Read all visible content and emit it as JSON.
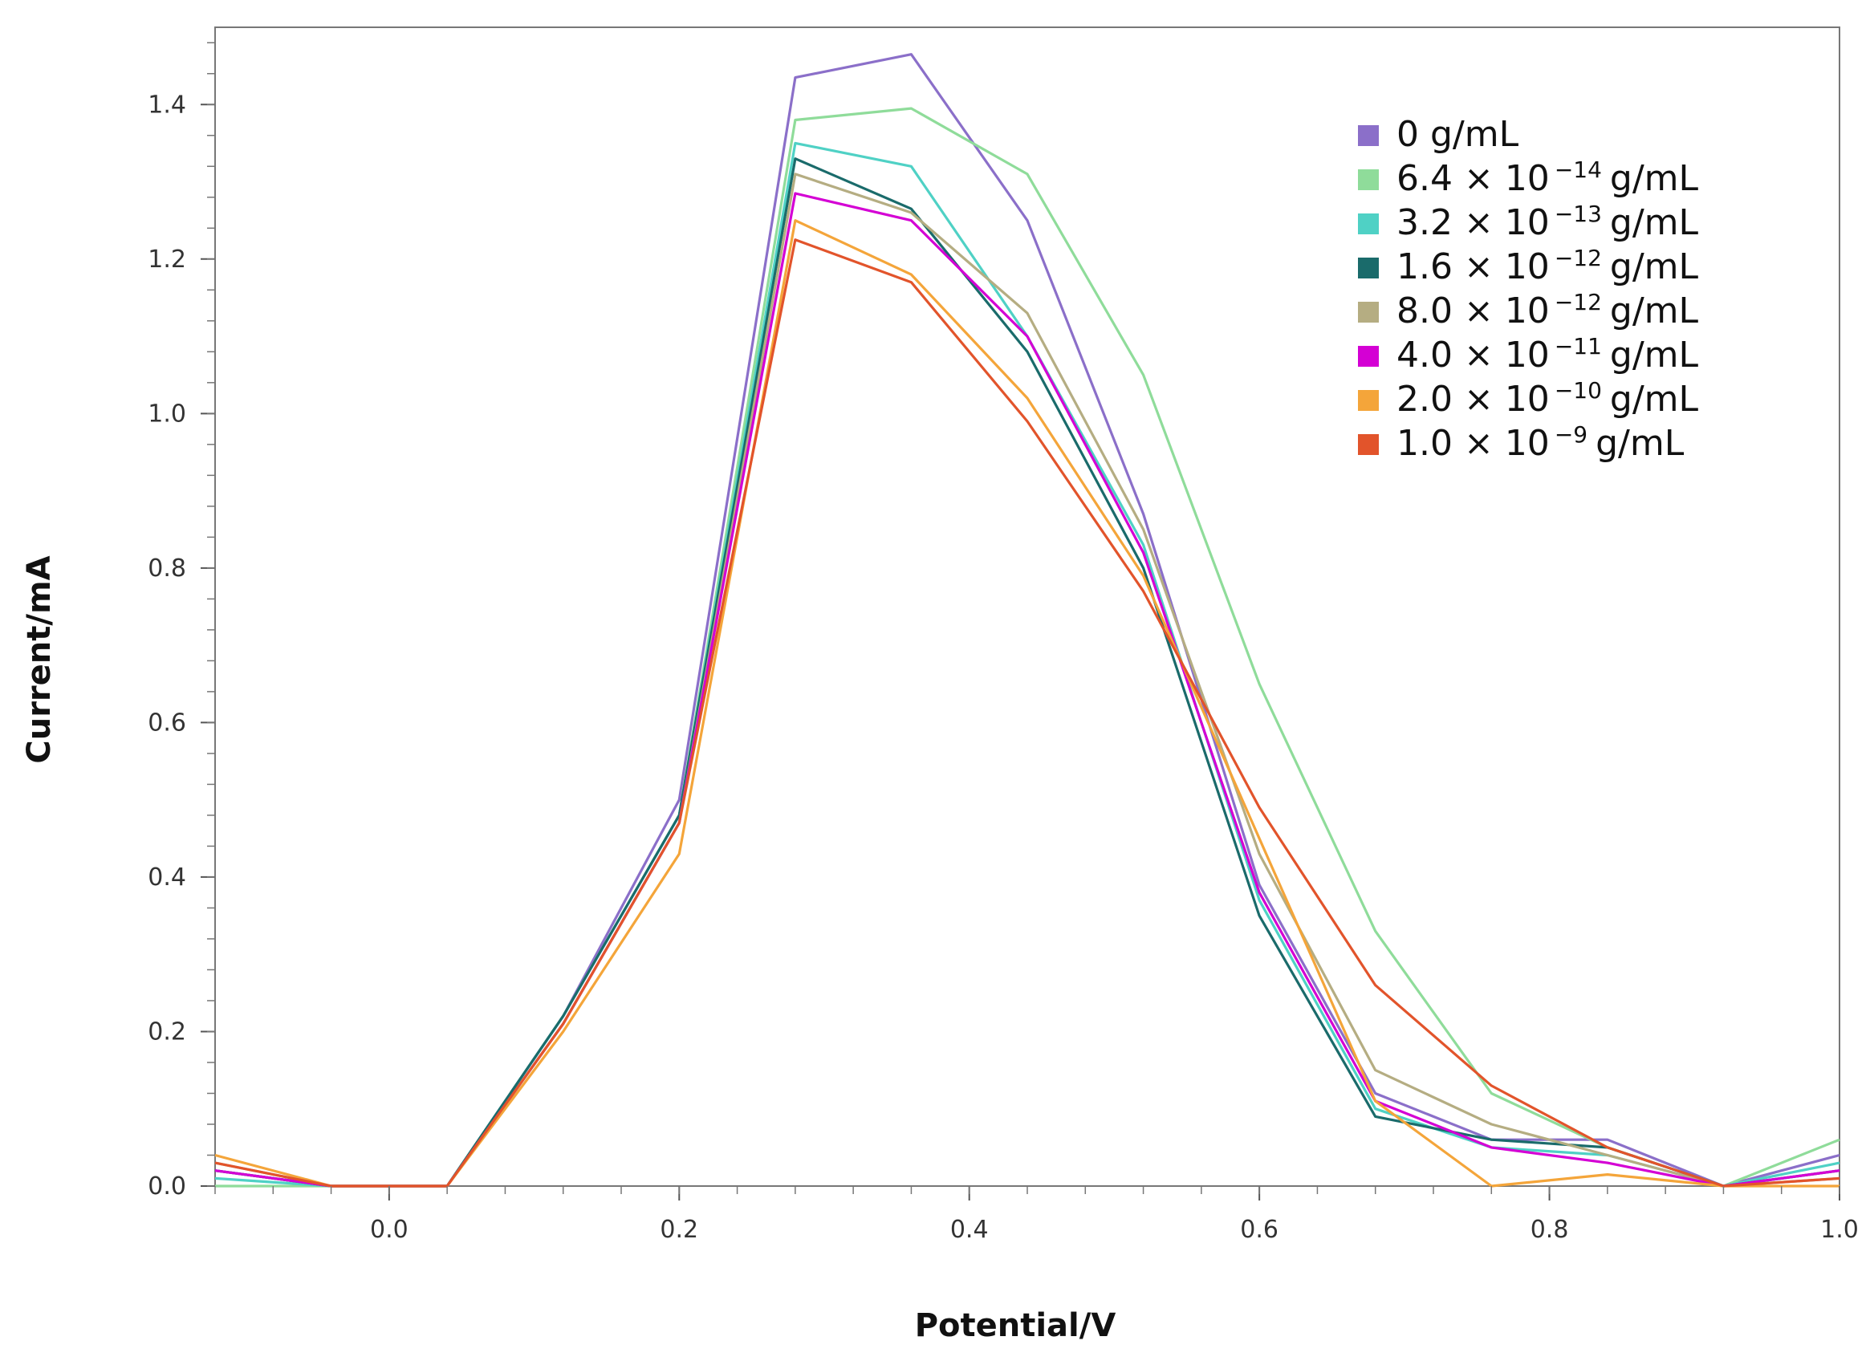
{
  "chart_data": {
    "type": "line",
    "title": "",
    "xlabel": "Potential/V",
    "ylabel": "Current/mA",
    "xlim": [
      -0.12,
      1.0
    ],
    "ylim": [
      0.0,
      1.5
    ],
    "x_ticks": [
      0.0,
      0.2,
      0.4,
      0.6,
      0.8,
      1.0
    ],
    "x_tick_labels": [
      "0.0",
      "0.2",
      "0.4",
      "0.6",
      "0.8",
      "1.0"
    ],
    "y_ticks": [
      0.0,
      0.2,
      0.4,
      0.6,
      0.8,
      1.0,
      1.2,
      1.4
    ],
    "y_tick_labels": [
      "0.0",
      "0.2",
      "0.4",
      "0.6",
      "0.8",
      "1.0",
      "1.2",
      "1.4"
    ],
    "grid": false,
    "legend_position": "top-right",
    "x": [
      -0.12,
      -0.04,
      0.04,
      0.12,
      0.2,
      0.28,
      0.36,
      0.44,
      0.52,
      0.6,
      0.68,
      0.76,
      0.84,
      0.92,
      1.0
    ],
    "series": [
      {
        "name": "0 g/mL",
        "label_main": "0 g/mL",
        "label_exp": "",
        "label_unit": "",
        "color": "#8b6fc9",
        "values": [
          0.02,
          0.0,
          0.0,
          0.22,
          0.5,
          1.435,
          1.465,
          1.25,
          0.87,
          0.39,
          0.12,
          0.06,
          0.06,
          0.0,
          0.04
        ]
      },
      {
        "name": "6.4 × 10^-14 g/mL",
        "label_main": "6.4 × 10",
        "label_exp": "−14",
        "label_unit": "g/mL",
        "color": "#8fdc9a",
        "values": [
          0.0,
          0.0,
          0.0,
          0.22,
          0.48,
          1.38,
          1.395,
          1.31,
          1.05,
          0.65,
          0.33,
          0.12,
          0.05,
          0.0,
          0.06
        ]
      },
      {
        "name": "3.2 × 10^-13 g/mL",
        "label_main": "3.2 × 10",
        "label_exp": "−13",
        "label_unit": "g/mL",
        "color": "#4fd1c5",
        "values": [
          0.01,
          0.0,
          0.0,
          0.22,
          0.48,
          1.35,
          1.32,
          1.1,
          0.83,
          0.37,
          0.1,
          0.05,
          0.04,
          0.0,
          0.03
        ]
      },
      {
        "name": "1.6 × 10^-12 g/mL",
        "label_main": "1.6 × 10",
        "label_exp": "−12",
        "label_unit": "g/mL",
        "color": "#1a6b6b",
        "values": [
          0.02,
          0.0,
          0.0,
          0.22,
          0.48,
          1.33,
          1.265,
          1.08,
          0.8,
          0.35,
          0.09,
          0.06,
          0.05,
          0.0,
          0.02
        ]
      },
      {
        "name": "8.0 × 10^-12 g/mL",
        "label_main": "8.0 × 10",
        "label_exp": "−12",
        "label_unit": "g/mL",
        "color": "#b5ad82",
        "values": [
          0.03,
          0.0,
          0.0,
          0.21,
          0.47,
          1.31,
          1.26,
          1.13,
          0.85,
          0.43,
          0.15,
          0.08,
          0.04,
          0.0,
          0.01
        ]
      },
      {
        "name": "4.0 × 10^-11 g/mL",
        "label_main": "4.0 × 10",
        "label_exp": "−11",
        "label_unit": "g/mL",
        "color": "#d400d4",
        "values": [
          0.02,
          0.0,
          0.0,
          0.21,
          0.47,
          1.285,
          1.25,
          1.1,
          0.82,
          0.38,
          0.11,
          0.05,
          0.03,
          0.0,
          0.02
        ]
      },
      {
        "name": "2.0 × 10^-10 g/mL",
        "label_main": "2.0 × 10",
        "label_exp": "−10",
        "label_unit": "g/mL",
        "color": "#f4a53a",
        "values": [
          0.04,
          0.0,
          0.0,
          0.2,
          0.43,
          1.25,
          1.18,
          1.02,
          0.79,
          0.45,
          0.11,
          0.0,
          0.015,
          0.0,
          0.0
        ]
      },
      {
        "name": "1.0 × 10^-9 g/mL",
        "label_main": "1.0 × 10",
        "label_exp": "−9",
        "label_unit": "g/mL",
        "color": "#e2542b",
        "values": [
          0.03,
          0.0,
          0.0,
          0.21,
          0.47,
          1.225,
          1.17,
          0.99,
          0.77,
          0.49,
          0.26,
          0.13,
          0.05,
          0.0,
          0.01
        ]
      }
    ]
  }
}
